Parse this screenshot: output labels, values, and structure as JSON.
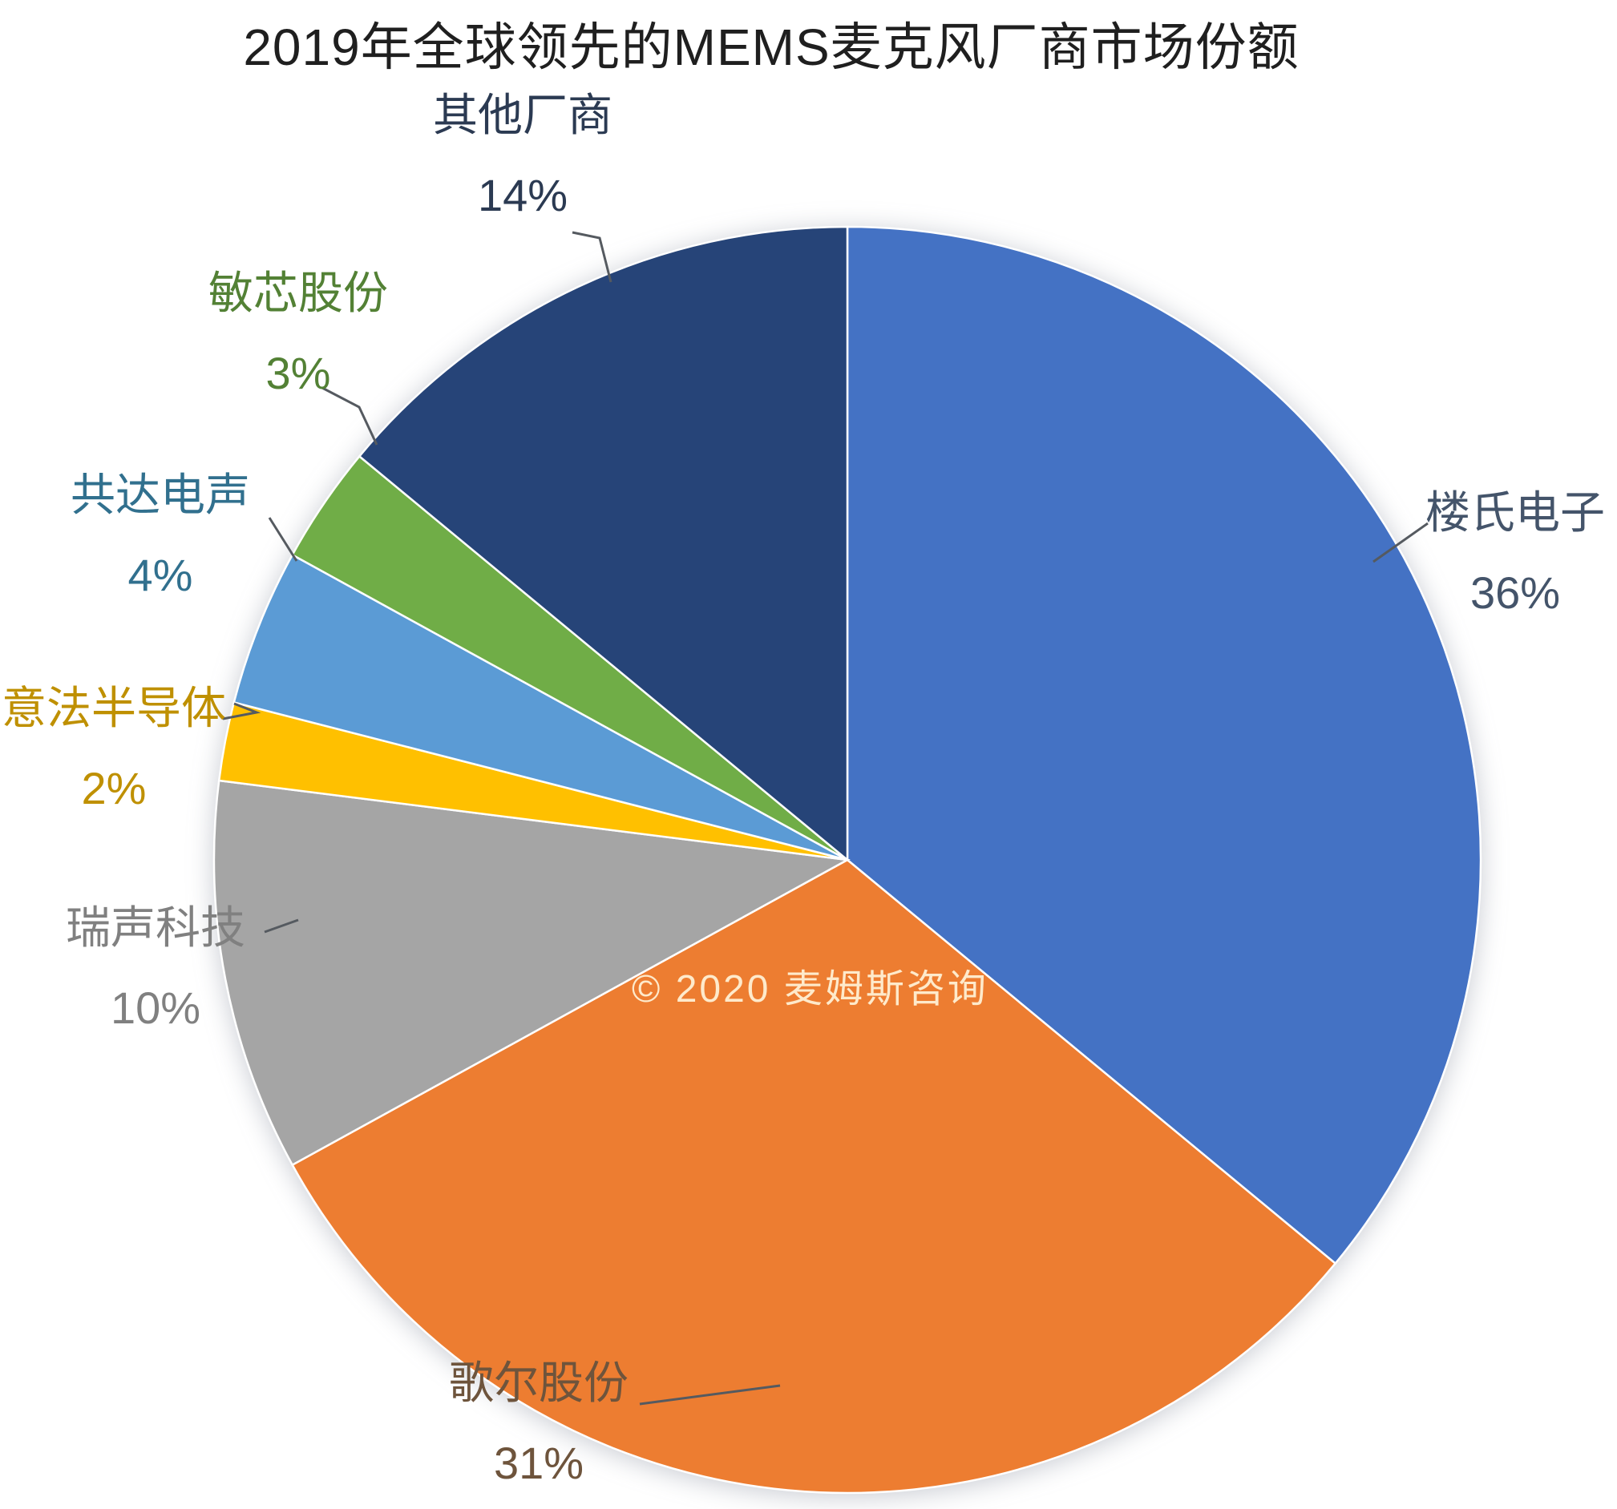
{
  "page": {
    "background_color": "#ffffff"
  },
  "chart_data": {
    "type": "pie",
    "title": "2019年全球领先的MEMS麦克风厂商市场份额",
    "watermark": "© 2020 麦姆斯咨询",
    "start_angle_deg": 0,
    "direction": "clockwise",
    "legend_position": "none",
    "label_style": "outside labels with category name, percent value and leader lines",
    "slices": [
      {
        "name": "楼氏电子",
        "value_pct": 36,
        "pct_label": "36%",
        "color": "#4472C4",
        "label_color": "#44546A"
      },
      {
        "name": "歌尔股份",
        "value_pct": 31,
        "pct_label": "31%",
        "color": "#ED7D31",
        "label_color": "#6E543C"
      },
      {
        "name": "瑞声科技",
        "value_pct": 10,
        "pct_label": "10%",
        "color": "#A5A5A5",
        "label_color": "#808080"
      },
      {
        "name": "意法半导体",
        "value_pct": 2,
        "pct_label": "2%",
        "color": "#FFC000",
        "label_color": "#BF9000"
      },
      {
        "name": "共达电声",
        "value_pct": 4,
        "pct_label": "4%",
        "color": "#5B9BD5",
        "label_color": "#31708E"
      },
      {
        "name": "敏芯股份",
        "value_pct": 3,
        "pct_label": "3%",
        "color": "#70AD47",
        "label_color": "#538135"
      },
      {
        "name": "其他厂商",
        "value_pct": 14,
        "pct_label": "14%",
        "color": "#264478",
        "label_color": "#2B3A52"
      }
    ]
  }
}
